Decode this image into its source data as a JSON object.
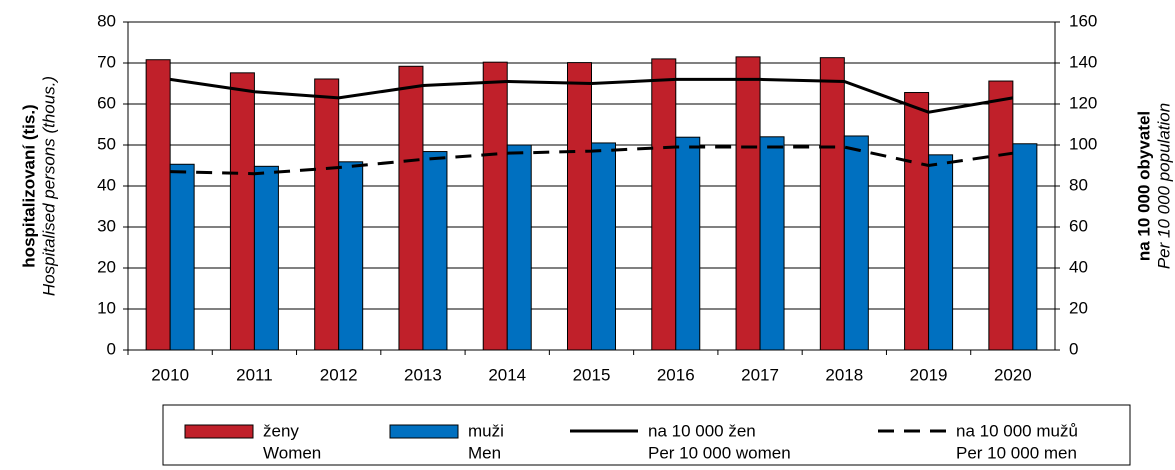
{
  "chart_data": {
    "type": "bar",
    "categories": [
      "2010",
      "2011",
      "2012",
      "2013",
      "2014",
      "2015",
      "2016",
      "2017",
      "2018",
      "2019",
      "2020"
    ],
    "ylabel": "hospitalizovaní (tis.)",
    "ylabel_en": "Hospitalised persons (thous.)",
    "y2label": "na 10 000 obyvatel",
    "y2label_en": "Per 10 000 population",
    "ylim": [
      0,
      80
    ],
    "yticks": [
      0,
      10,
      20,
      30,
      40,
      50,
      60,
      70,
      80
    ],
    "y2lim": [
      0,
      160
    ],
    "y2ticks": [
      0,
      20,
      40,
      60,
      80,
      100,
      120,
      140,
      160
    ],
    "grid": true,
    "series": [
      {
        "name": "ženy",
        "name_en": "Women",
        "type": "bar",
        "color": "#c0202a",
        "values": [
          70.8,
          67.6,
          66.1,
          69.2,
          70.2,
          70.1,
          71.0,
          71.5,
          71.3,
          62.8,
          65.6
        ]
      },
      {
        "name": "muži",
        "name_en": "Men",
        "type": "bar",
        "color": "#0070c0",
        "values": [
          45.3,
          44.8,
          45.9,
          48.4,
          50.0,
          50.5,
          51.9,
          52.0,
          52.2,
          47.6,
          50.3
        ]
      },
      {
        "name": "na 10 000 žen",
        "name_en": "Per 10 000 women",
        "type": "line",
        "axis": "y2",
        "color": "#000000",
        "dash": false,
        "values": [
          132,
          126,
          123,
          129,
          131,
          130,
          132,
          132,
          131,
          116,
          123
        ]
      },
      {
        "name": "na 10 000 mužů",
        "name_en": "Per 10 000 men",
        "type": "line",
        "axis": "y2",
        "color": "#000000",
        "dash": true,
        "values": [
          87,
          86,
          89,
          93,
          96,
          97,
          99,
          99,
          99,
          90,
          96
        ]
      }
    ]
  }
}
